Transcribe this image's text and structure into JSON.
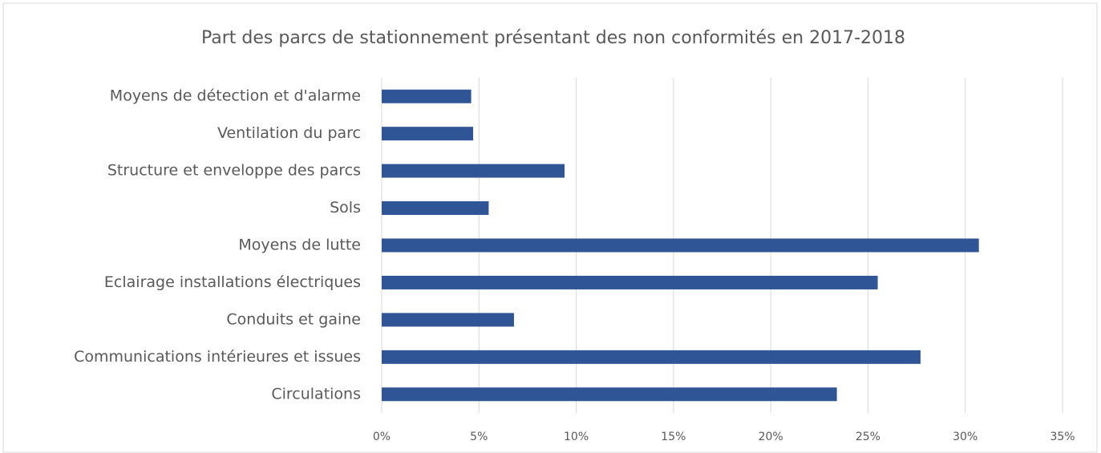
{
  "chart_data": {
    "type": "bar",
    "orientation": "horizontal",
    "title": "Part des parcs de stationnement présentant des non conformités en 2017-2018",
    "categories": [
      "Moyens de détection et d'alarme",
      "Ventilation du parc",
      "Structure et enveloppe des parcs",
      "Sols",
      "Moyens de lutte",
      "Eclairage installations électriques",
      "Conduits et gaine",
      "Communications intérieures et issues",
      "Circulations"
    ],
    "values": [
      4.6,
      4.7,
      9.4,
      5.5,
      30.7,
      25.5,
      6.8,
      27.7,
      23.4
    ],
    "color": "#2f5597",
    "xlim": [
      0,
      35
    ],
    "xticks": [
      {
        "value": 0,
        "label": "0%"
      },
      {
        "value": 5,
        "label": "5%"
      },
      {
        "value": 10,
        "label": "10%"
      },
      {
        "value": 15,
        "label": "15%"
      },
      {
        "value": 20,
        "label": "20%"
      },
      {
        "value": 25,
        "label": "25%"
      },
      {
        "value": 30,
        "label": "30%"
      },
      {
        "value": 35,
        "label": "35%"
      }
    ],
    "grid": true
  }
}
